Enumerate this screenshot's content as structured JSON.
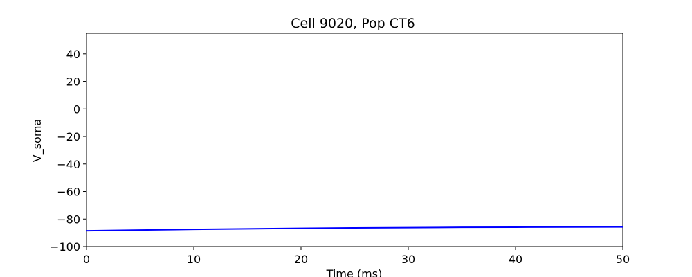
{
  "chart_data": {
    "type": "line",
    "title": "Cell 9020, Pop CT6",
    "xlabel": "Time (ms)",
    "ylabel": "V_soma",
    "xlim": [
      0,
      50
    ],
    "ylim": [
      -100,
      55
    ],
    "xticks": [
      0,
      10,
      20,
      30,
      40,
      50
    ],
    "yticks": [
      -100,
      -80,
      -60,
      -40,
      -20,
      0,
      20,
      40
    ],
    "grid": false,
    "series": [
      {
        "color": "#0000ff",
        "x": [
          0,
          5,
          10,
          15,
          20,
          25,
          30,
          35,
          40,
          45,
          50
        ],
        "y": [
          -88.5,
          -88.0,
          -87.5,
          -87.1,
          -86.7,
          -86.4,
          -86.2,
          -86.0,
          -85.9,
          -85.8,
          -85.7
        ]
      }
    ]
  }
}
